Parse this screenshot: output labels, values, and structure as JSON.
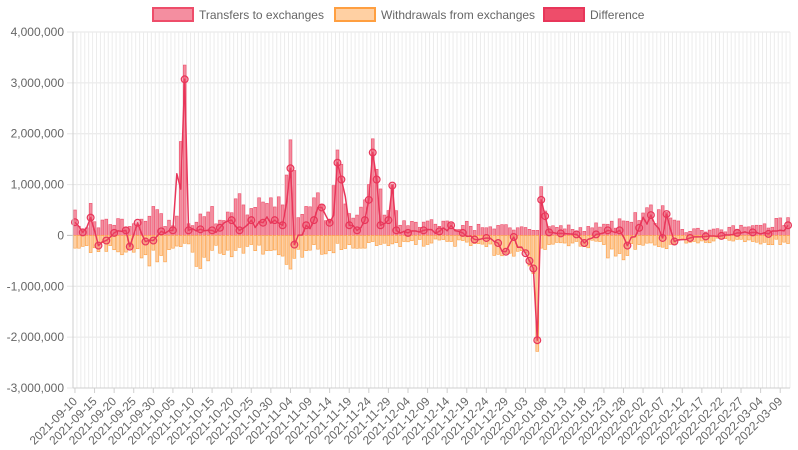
{
  "chart_data": {
    "type": "bar",
    "title": "",
    "xlabel": "",
    "ylabel": "",
    "ylim": [
      -3000000,
      4000000
    ],
    "yticks": [
      4000000,
      3000000,
      2000000,
      1000000,
      0,
      -1000000,
      -2000000,
      -3000000
    ],
    "ytick_labels": [
      "4,000,000",
      "3,000,000",
      "2,000,000",
      "1,000,000",
      "0",
      "-1,000,000",
      "-2,000,000",
      "-3,000,000"
    ],
    "x_range": [
      "2021-09-10",
      "2022-03-11"
    ],
    "xtick_labels": [
      "2021-09-10",
      "2021-09-15",
      "2021-09-20",
      "2021-09-25",
      "2021-09-30",
      "2021-10-05",
      "2021-10-10",
      "2021-10-15",
      "2021-10-20",
      "2021-10-25",
      "2021-10-30",
      "2021-11-04",
      "2021-11-09",
      "2021-11-14",
      "2021-11-19",
      "2021-11-24",
      "2021-11-29",
      "2021-12-04",
      "2021-12-09",
      "2021-12-14",
      "2021-12-19",
      "2021-12-24",
      "2021-12-29",
      "2022-01-03",
      "2022-01-08",
      "2022-01-13",
      "2022-01-18",
      "2022-01-23",
      "2022-01-28",
      "2022-02-02",
      "2022-02-07",
      "2022-02-12",
      "2022-02-17",
      "2022-02-22",
      "2022-02-27",
      "2022-03-04",
      "2022-03-09"
    ],
    "grid": true,
    "legend_position": "top",
    "series": [
      {
        "name": "Transfers to exchanges",
        "kind": "bar",
        "color": "#ee4d6a",
        "fill": "#f48ea0",
        "keypoints": [
          [
            "2021-09-10",
            500000
          ],
          [
            "2021-09-11",
            180000
          ],
          [
            "2021-09-13",
            150000
          ],
          [
            "2021-09-14",
            630000
          ],
          [
            "2021-09-16",
            150000
          ],
          [
            "2021-09-18",
            320000
          ],
          [
            "2021-09-20",
            200000
          ],
          [
            "2021-09-22",
            320000
          ],
          [
            "2021-09-25",
            230000
          ],
          [
            "2021-09-27",
            320000
          ],
          [
            "2021-09-30",
            570000
          ],
          [
            "2021-10-02",
            430000
          ],
          [
            "2021-10-04",
            300000
          ],
          [
            "2021-10-06",
            380000
          ],
          [
            "2021-10-08",
            3350000
          ],
          [
            "2021-10-09",
            230000
          ],
          [
            "2021-10-11",
            260000
          ],
          [
            "2021-10-13",
            370000
          ],
          [
            "2021-10-15",
            570000
          ],
          [
            "2021-10-17",
            300000
          ],
          [
            "2021-10-19",
            460000
          ],
          [
            "2021-10-21",
            720000
          ],
          [
            "2021-10-23",
            600000
          ],
          [
            "2021-10-25",
            530000
          ],
          [
            "2021-10-27",
            740000
          ],
          [
            "2021-10-29",
            630000
          ],
          [
            "2021-10-31",
            560000
          ],
          [
            "2021-11-02",
            600000
          ],
          [
            "2021-11-04",
            1880000
          ],
          [
            "2021-11-06",
            350000
          ],
          [
            "2021-11-08",
            570000
          ],
          [
            "2021-11-10",
            740000
          ],
          [
            "2021-11-12",
            600000
          ],
          [
            "2021-11-14",
            300000
          ],
          [
            "2021-11-16",
            1680000
          ],
          [
            "2021-11-17",
            1400000
          ],
          [
            "2021-11-19",
            430000
          ],
          [
            "2021-11-21",
            400000
          ],
          [
            "2021-11-23",
            700000
          ],
          [
            "2021-11-24",
            1000000
          ],
          [
            "2021-11-25",
            1900000
          ],
          [
            "2021-11-26",
            1300000
          ],
          [
            "2021-11-28",
            400000
          ],
          [
            "2021-11-30",
            1000000
          ],
          [
            "2021-12-02",
            200000
          ],
          [
            "2021-12-06",
            260000
          ],
          [
            "2021-12-10",
            310000
          ],
          [
            "2021-12-15",
            240000
          ],
          [
            "2021-12-20",
            180000
          ],
          [
            "2021-12-25",
            170000
          ],
          [
            "2021-12-30",
            150000
          ],
          [
            "2022-01-02",
            170000
          ],
          [
            "2022-01-04",
            120000
          ],
          [
            "2022-01-06",
            100000
          ],
          [
            "2022-01-07",
            960000
          ],
          [
            "2022-01-08",
            480000
          ],
          [
            "2022-01-10",
            190000
          ],
          [
            "2022-01-15",
            120000
          ],
          [
            "2022-01-20",
            150000
          ],
          [
            "2022-01-25",
            280000
          ],
          [
            "2022-01-30",
            260000
          ],
          [
            "2022-02-04",
            600000
          ],
          [
            "2022-02-08",
            450000
          ],
          [
            "2022-02-12",
            120000
          ],
          [
            "2022-02-17",
            100000
          ],
          [
            "2022-02-22",
            110000
          ],
          [
            "2022-02-27",
            200000
          ],
          [
            "2022-03-04",
            200000
          ],
          [
            "2022-03-11",
            350000
          ]
        ]
      },
      {
        "name": "Withdrawals from exchanges",
        "kind": "bar",
        "color": "#ff9f40",
        "fill": "#ffd0a3",
        "keypoints": [
          [
            "2021-09-10",
            -250000
          ],
          [
            "2021-09-13",
            -200000
          ],
          [
            "2021-09-16",
            -320000
          ],
          [
            "2021-09-19",
            -200000
          ],
          [
            "2021-09-22",
            -380000
          ],
          [
            "2021-09-25",
            -330000
          ],
          [
            "2021-09-28",
            -380000
          ],
          [
            "2021-10-01",
            -520000
          ],
          [
            "2021-10-04",
            -280000
          ],
          [
            "2021-10-07",
            -220000
          ],
          [
            "2021-10-10",
            -330000
          ],
          [
            "2021-10-12",
            -650000
          ],
          [
            "2021-10-14",
            -500000
          ],
          [
            "2021-10-17",
            -350000
          ],
          [
            "2021-10-20",
            -420000
          ],
          [
            "2021-10-23",
            -350000
          ],
          [
            "2021-10-26",
            -300000
          ],
          [
            "2021-10-29",
            -300000
          ],
          [
            "2021-11-01",
            -380000
          ],
          [
            "2021-11-03",
            -570000
          ],
          [
            "2021-11-05",
            -450000
          ],
          [
            "2021-11-08",
            -300000
          ],
          [
            "2021-11-11",
            -270000
          ],
          [
            "2021-11-14",
            -300000
          ],
          [
            "2021-11-17",
            -280000
          ],
          [
            "2021-11-20",
            -250000
          ],
          [
            "2021-11-23",
            -250000
          ],
          [
            "2021-11-26",
            -200000
          ],
          [
            "2021-11-29",
            -200000
          ],
          [
            "2021-12-02",
            -220000
          ],
          [
            "2021-12-06",
            -180000
          ],
          [
            "2021-12-10",
            -150000
          ],
          [
            "2021-12-15",
            -120000
          ],
          [
            "2021-12-20",
            -200000
          ],
          [
            "2021-12-24",
            -220000
          ],
          [
            "2021-12-28",
            -400000
          ],
          [
            "2021-12-30",
            -350000
          ],
          [
            "2022-01-02",
            -300000
          ],
          [
            "2022-01-04",
            -600000
          ],
          [
            "2022-01-05",
            -750000
          ],
          [
            "2022-01-06",
            -2280000
          ],
          [
            "2022-01-07",
            -250000
          ],
          [
            "2022-01-09",
            -180000
          ],
          [
            "2022-01-13",
            -150000
          ],
          [
            "2022-01-18",
            -220000
          ],
          [
            "2022-01-23",
            -180000
          ],
          [
            "2022-01-28",
            -480000
          ],
          [
            "2022-02-01",
            -180000
          ],
          [
            "2022-02-06",
            -220000
          ],
          [
            "2022-02-10",
            -180000
          ],
          [
            "2022-02-15",
            -120000
          ],
          [
            "2022-02-20",
            -110000
          ],
          [
            "2022-02-25",
            -110000
          ],
          [
            "2022-03-02",
            -120000
          ],
          [
            "2022-03-11",
            -160000
          ]
        ]
      },
      {
        "name": "Difference",
        "kind": "line",
        "color": "#e8365a",
        "fill": "#ee4d6a",
        "keypoints": [
          [
            "2021-09-10",
            260000
          ],
          [
            "2021-09-12",
            60000
          ],
          [
            "2021-09-14",
            350000
          ],
          [
            "2021-09-16",
            -200000
          ],
          [
            "2021-09-18",
            -100000
          ],
          [
            "2021-09-20",
            50000
          ],
          [
            "2021-09-23",
            100000
          ],
          [
            "2021-09-24",
            -220000
          ],
          [
            "2021-09-26",
            250000
          ],
          [
            "2021-09-28",
            -120000
          ],
          [
            "2021-09-30",
            -100000
          ],
          [
            "2021-10-02",
            80000
          ],
          [
            "2021-10-05",
            100000
          ],
          [
            "2021-10-08",
            3070000
          ],
          [
            "2021-10-09",
            100000
          ],
          [
            "2021-10-12",
            120000
          ],
          [
            "2021-10-15",
            100000
          ],
          [
            "2021-10-17",
            150000
          ],
          [
            "2021-10-20",
            300000
          ],
          [
            "2021-10-22",
            100000
          ],
          [
            "2021-10-25",
            300000
          ],
          [
            "2021-10-28",
            250000
          ],
          [
            "2021-10-31",
            300000
          ],
          [
            "2021-11-02",
            200000
          ],
          [
            "2021-11-04",
            1320000
          ],
          [
            "2021-11-05",
            -180000
          ],
          [
            "2021-11-08",
            200000
          ],
          [
            "2021-11-10",
            300000
          ],
          [
            "2021-11-12",
            550000
          ],
          [
            "2021-11-14",
            250000
          ],
          [
            "2021-11-16",
            1430000
          ],
          [
            "2021-11-17",
            1100000
          ],
          [
            "2021-11-19",
            200000
          ],
          [
            "2021-11-21",
            100000
          ],
          [
            "2021-11-23",
            300000
          ],
          [
            "2021-11-24",
            700000
          ],
          [
            "2021-11-25",
            1630000
          ],
          [
            "2021-11-26",
            1100000
          ],
          [
            "2021-11-27",
            200000
          ],
          [
            "2021-11-29",
            300000
          ],
          [
            "2021-11-30",
            980000
          ],
          [
            "2021-12-01",
            100000
          ],
          [
            "2021-12-04",
            50000
          ],
          [
            "2021-12-08",
            100000
          ],
          [
            "2021-12-12",
            80000
          ],
          [
            "2021-12-15",
            200000
          ],
          [
            "2021-12-18",
            50000
          ],
          [
            "2021-12-21",
            -80000
          ],
          [
            "2021-12-24",
            -50000
          ],
          [
            "2021-12-27",
            -150000
          ],
          [
            "2021-12-29",
            -320000
          ],
          [
            "2021-12-31",
            -30000
          ],
          [
            "2022-01-03",
            -350000
          ],
          [
            "2022-01-04",
            -500000
          ],
          [
            "2022-01-05",
            -650000
          ],
          [
            "2022-01-06",
            -2060000
          ],
          [
            "2022-01-07",
            700000
          ],
          [
            "2022-01-08",
            380000
          ],
          [
            "2022-01-09",
            60000
          ],
          [
            "2022-01-12",
            40000
          ],
          [
            "2022-01-16",
            20000
          ],
          [
            "2022-01-18",
            -150000
          ],
          [
            "2022-01-21",
            20000
          ],
          [
            "2022-01-24",
            100000
          ],
          [
            "2022-01-27",
            100000
          ],
          [
            "2022-01-29",
            -200000
          ],
          [
            "2022-02-01",
            150000
          ],
          [
            "2022-02-04",
            400000
          ],
          [
            "2022-02-07",
            -50000
          ],
          [
            "2022-02-08",
            420000
          ],
          [
            "2022-02-10",
            -120000
          ],
          [
            "2022-02-14",
            -50000
          ],
          [
            "2022-02-18",
            -20000
          ],
          [
            "2022-02-22",
            -10000
          ],
          [
            "2022-02-26",
            50000
          ],
          [
            "2022-03-02",
            60000
          ],
          [
            "2022-03-06",
            30000
          ],
          [
            "2022-03-11",
            200000
          ]
        ]
      }
    ]
  }
}
